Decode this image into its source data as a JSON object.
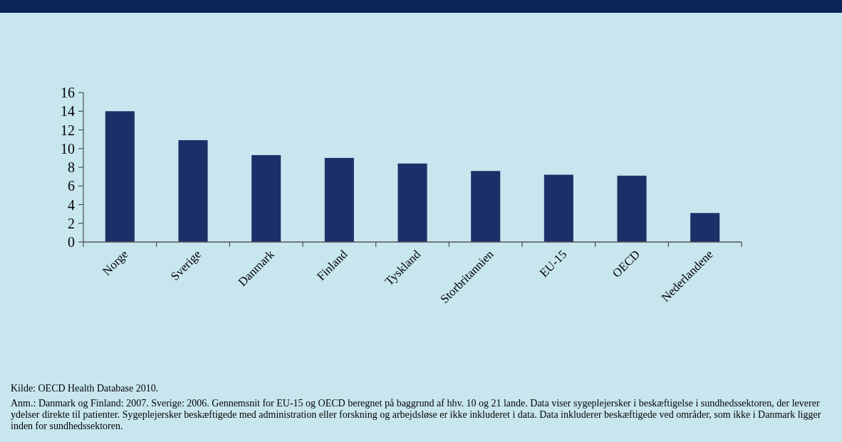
{
  "chart_data": {
    "type": "bar",
    "categories": [
      "Norge",
      "Sverige",
      "Danmark",
      "Finland",
      "Tyskland",
      "Storbritannien",
      "EU-15",
      "OECD",
      "Nederlandene"
    ],
    "values": [
      14,
      10.9,
      9.3,
      9.0,
      8.4,
      7.6,
      7.2,
      7.1,
      3.1
    ],
    "color": "#1c2f68",
    "ylim": [
      0,
      16
    ],
    "yticks": [
      0,
      2,
      4,
      6,
      8,
      10,
      12,
      14,
      16
    ],
    "grid": false,
    "annotations": [
      "Kilde: OECD Health Database 2010.",
      "Anm.: Danmark og Finland: 2007. Sverige: 2006. Gennemsnit for EU-15 og OECD beregnet på baggrund af hhv. 10 og 21 lande. Data viser sygeplejersker i beskæftigelse i sundhedssektoren, der leverer ydelser direkte til patienter. Sygeplejersker beskæftigede med administration eller forskning og arbejdsløse er ikke inkluderet i data. Data inkluderer beskæftigede ved områder, som ikke i Danmark ligger inden for sundhedssektoren."
    ]
  }
}
